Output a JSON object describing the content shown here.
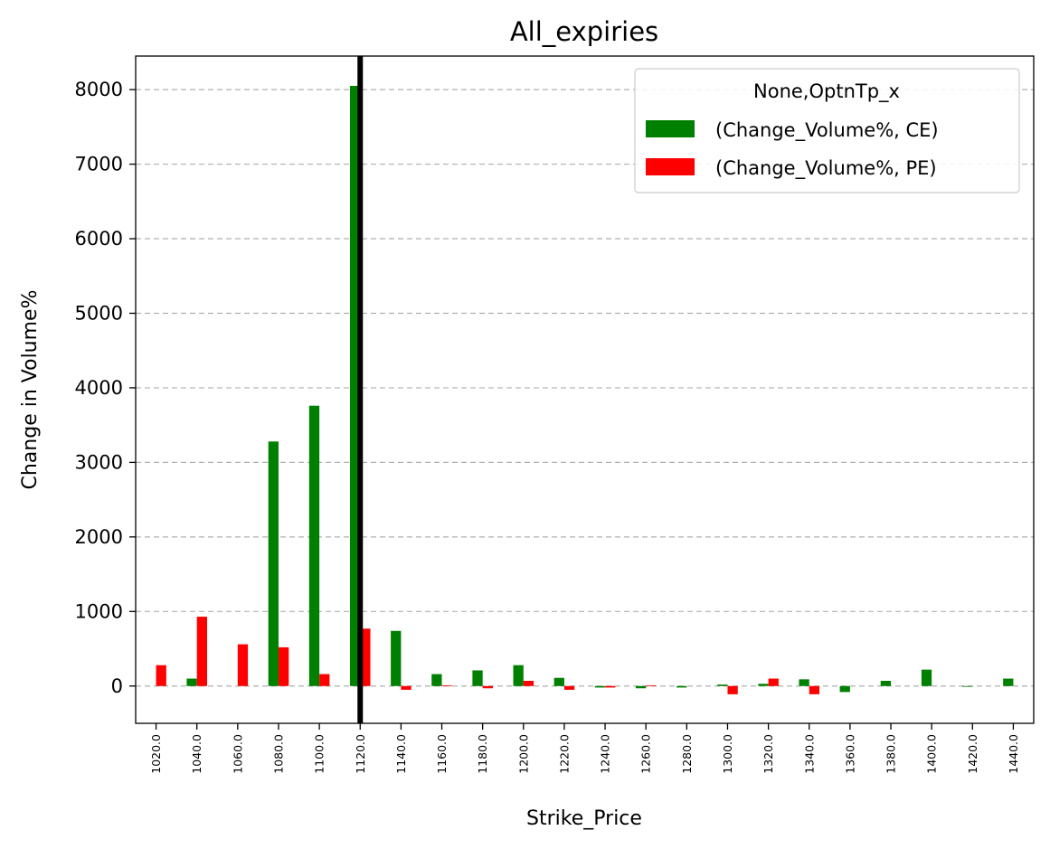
{
  "chart_data": {
    "type": "bar",
    "title": "All_expiries",
    "xlabel": "Strike_Price",
    "ylabel": "Change in Volume%",
    "categories": [
      "1020.0",
      "1040.0",
      "1060.0",
      "1080.0",
      "1100.0",
      "1120.0",
      "1140.0",
      "1160.0",
      "1180.0",
      "1200.0",
      "1220.0",
      "1240.0",
      "1260.0",
      "1280.0",
      "1300.0",
      "1320.0",
      "1340.0",
      "1360.0",
      "1380.0",
      "1400.0",
      "1420.0",
      "1440.0"
    ],
    "series": [
      {
        "name": "(Change_Volume%, CE)",
        "color": "#008000",
        "values": [
          0,
          100,
          0,
          3280,
          3760,
          8050,
          740,
          160,
          210,
          280,
          110,
          -20,
          -30,
          -20,
          20,
          30,
          90,
          -80,
          70,
          220,
          -10,
          100
        ]
      },
      {
        "name": "(Change_Volume%, PE)",
        "color": "#ff0000",
        "values": [
          280,
          930,
          560,
          520,
          160,
          770,
          -50,
          10,
          -30,
          70,
          -50,
          -20,
          10,
          0,
          -110,
          100,
          -110,
          0,
          0,
          0,
          0,
          0
        ]
      }
    ],
    "ylim": [
      -500,
      8450
    ],
    "yticks": [
      0,
      1000,
      2000,
      3000,
      4000,
      5000,
      6000,
      7000,
      8000
    ],
    "grid": "y-dashed",
    "legend": {
      "title": "None,OptnTp_x",
      "position": "top-right"
    },
    "vline": {
      "category": "1120.0",
      "color": "#000000"
    }
  }
}
